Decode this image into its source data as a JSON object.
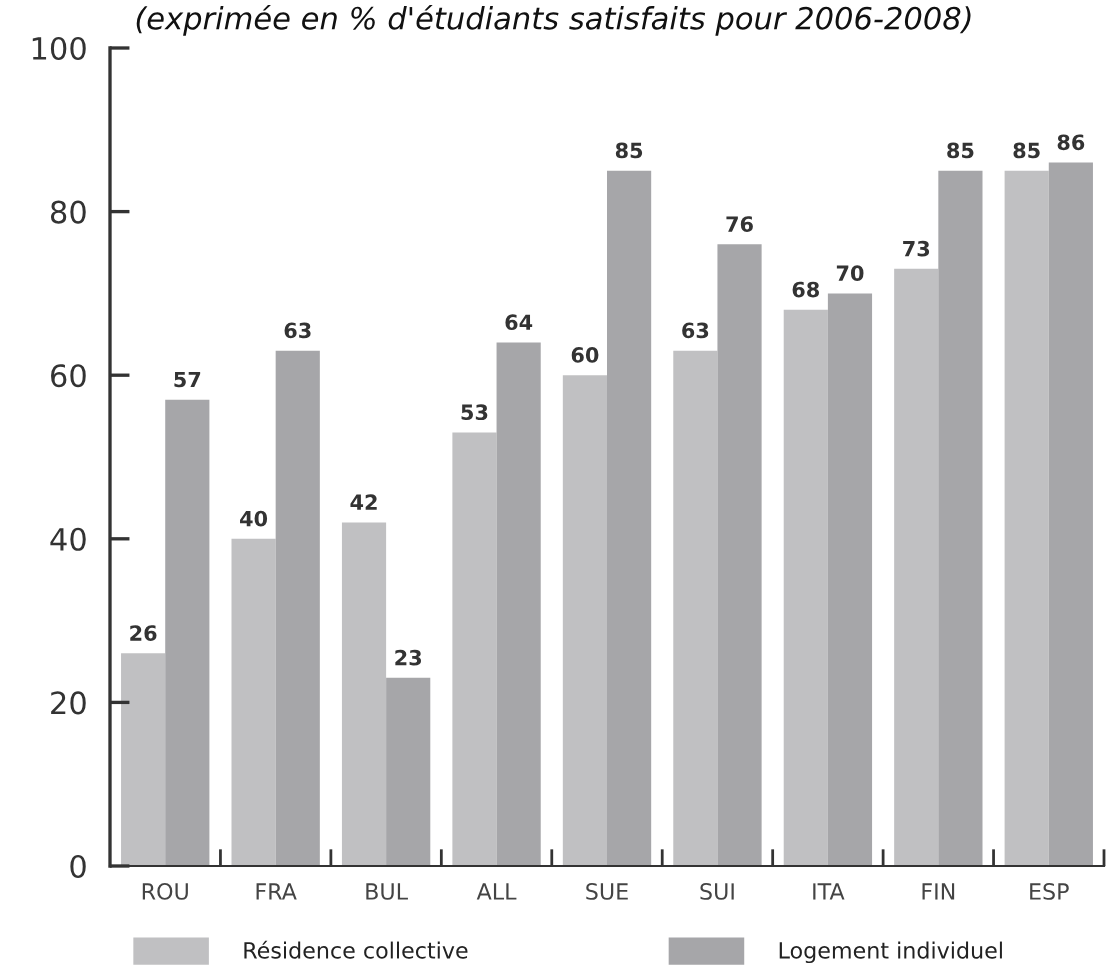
{
  "chart_data": {
    "type": "bar",
    "title": "(exprimée en % d'étudiants satisfaits pour 2006-2008)",
    "categories": [
      "ROU",
      "FRA",
      "BUL",
      "ALL",
      "SUE",
      "SUI",
      "ITA",
      "FIN",
      "ESP"
    ],
    "series": [
      {
        "name": "Résidence collective",
        "color": "#c0c0c2",
        "values": [
          26,
          40,
          42,
          53,
          60,
          63,
          68,
          73,
          85
        ]
      },
      {
        "name": "Logement individuel",
        "color": "#a6a6a9",
        "values": [
          57,
          63,
          23,
          64,
          85,
          76,
          70,
          85,
          86
        ]
      }
    ],
    "ylim": [
      0,
      100
    ],
    "yticks": [
      0,
      20,
      40,
      60,
      80,
      100
    ],
    "data_labels": true,
    "legend": "bottom",
    "grid": false
  }
}
